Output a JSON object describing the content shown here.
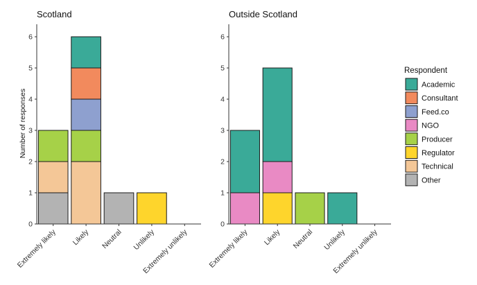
{
  "chart_data": [
    {
      "type": "bar",
      "stacked": true,
      "title": "Scotland",
      "ylabel": "Number of responses",
      "ylim": [
        0,
        6.4
      ],
      "yticks": [
        0,
        1,
        2,
        3,
        4,
        5,
        6
      ],
      "categories": [
        "Extremely likely",
        "Likely",
        "Neutral",
        "Unlikely",
        "Extremely unlikely"
      ],
      "series": [
        {
          "name": "Other",
          "values": [
            1,
            0,
            1,
            0,
            0
          ]
        },
        {
          "name": "Technical",
          "values": [
            1,
            2,
            0,
            0,
            0
          ]
        },
        {
          "name": "Regulator",
          "values": [
            0,
            0,
            0,
            1,
            0
          ]
        },
        {
          "name": "Producer",
          "values": [
            1,
            1,
            0,
            0,
            0
          ]
        },
        {
          "name": "NGO",
          "values": [
            0,
            0,
            0,
            0,
            0
          ]
        },
        {
          "name": "Feed.co",
          "values": [
            0,
            1,
            0,
            0,
            0
          ]
        },
        {
          "name": "Consultant",
          "values": [
            0,
            1,
            0,
            0,
            0
          ]
        },
        {
          "name": "Academic",
          "values": [
            0,
            1,
            0,
            0,
            0
          ]
        }
      ]
    },
    {
      "type": "bar",
      "stacked": true,
      "title": "Outside Scotland",
      "ylim": [
        0,
        6.4
      ],
      "yticks": [
        0,
        1,
        2,
        3,
        4,
        5,
        6
      ],
      "categories": [
        "Extremely likely",
        "Likely",
        "Neutral",
        "Unlikely",
        "Extremely unlikely"
      ],
      "series": [
        {
          "name": "Other",
          "values": [
            0,
            0,
            0,
            0,
            0
          ]
        },
        {
          "name": "Technical",
          "values": [
            0,
            0,
            0,
            0,
            0
          ]
        },
        {
          "name": "Regulator",
          "values": [
            0,
            1,
            0,
            0,
            0
          ]
        },
        {
          "name": "Producer",
          "values": [
            0,
            0,
            1,
            0,
            0
          ]
        },
        {
          "name": "NGO",
          "values": [
            1,
            1,
            0,
            0,
            0
          ]
        },
        {
          "name": "Feed.co",
          "values": [
            0,
            0,
            0,
            0,
            0
          ]
        },
        {
          "name": "Consultant",
          "values": [
            0,
            0,
            0,
            0,
            0
          ]
        },
        {
          "name": "Academic",
          "values": [
            2,
            3,
            0,
            1,
            0
          ]
        }
      ]
    }
  ],
  "legend": {
    "title": "Respondent",
    "placement": "right",
    "items": [
      {
        "name": "Academic",
        "color": "#3aaa98"
      },
      {
        "name": "Consultant",
        "color": "#f28a5d"
      },
      {
        "name": "Feed.co",
        "color": "#8ea0cf"
      },
      {
        "name": "NGO",
        "color": "#e98ac4"
      },
      {
        "name": "Producer",
        "color": "#a6d148"
      },
      {
        "name": "Regulator",
        "color": "#fed52c"
      },
      {
        "name": "Technical",
        "color": "#f4c797"
      },
      {
        "name": "Other",
        "color": "#b3b3b3"
      }
    ]
  }
}
